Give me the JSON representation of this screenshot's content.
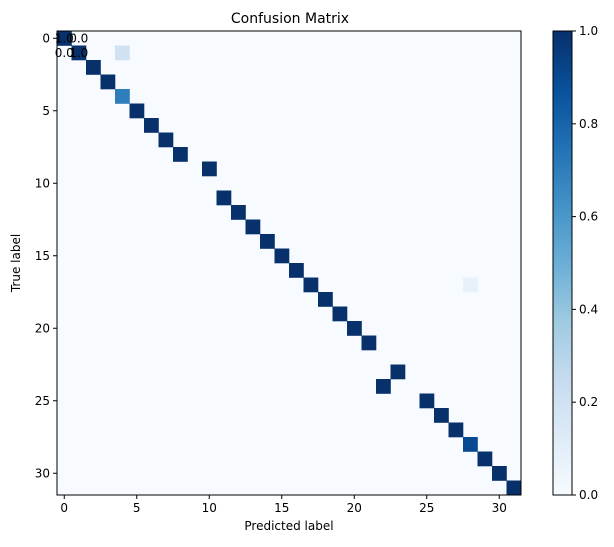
{
  "chart_data": {
    "type": "heatmap",
    "title": "Confusion Matrix",
    "xlabel": "Predicted label",
    "ylabel": "True label",
    "n_classes": 32,
    "xlim": [
      -0.5,
      31.5
    ],
    "ylim": [
      31.5,
      -0.5
    ],
    "x_ticks": [
      0,
      5,
      10,
      15,
      20,
      25,
      30
    ],
    "y_ticks": [
      0,
      5,
      10,
      15,
      20,
      25,
      30
    ],
    "default_value": 0.0,
    "cells": [
      {
        "row": 0,
        "col": 0,
        "value": 1.0
      },
      {
        "row": 1,
        "col": 1,
        "value": 1.0
      },
      {
        "row": 1,
        "col": 4,
        "value": 0.2
      },
      {
        "row": 2,
        "col": 2,
        "value": 1.0
      },
      {
        "row": 3,
        "col": 3,
        "value": 1.0
      },
      {
        "row": 4,
        "col": 4,
        "value": 0.7
      },
      {
        "row": 5,
        "col": 5,
        "value": 1.0
      },
      {
        "row": 6,
        "col": 6,
        "value": 1.0
      },
      {
        "row": 7,
        "col": 7,
        "value": 1.0
      },
      {
        "row": 8,
        "col": 8,
        "value": 1.0
      },
      {
        "row": 9,
        "col": 10,
        "value": 1.0
      },
      {
        "row": 11,
        "col": 11,
        "value": 1.0
      },
      {
        "row": 12,
        "col": 12,
        "value": 1.0
      },
      {
        "row": 13,
        "col": 13,
        "value": 1.0
      },
      {
        "row": 14,
        "col": 14,
        "value": 1.0
      },
      {
        "row": 15,
        "col": 15,
        "value": 1.0
      },
      {
        "row": 16,
        "col": 16,
        "value": 1.0
      },
      {
        "row": 17,
        "col": 17,
        "value": 1.0
      },
      {
        "row": 17,
        "col": 28,
        "value": 0.08
      },
      {
        "row": 18,
        "col": 18,
        "value": 1.0
      },
      {
        "row": 19,
        "col": 19,
        "value": 1.0
      },
      {
        "row": 20,
        "col": 20,
        "value": 1.0
      },
      {
        "row": 21,
        "col": 21,
        "value": 1.0
      },
      {
        "row": 23,
        "col": 23,
        "value": 1.0
      },
      {
        "row": 24,
        "col": 22,
        "value": 1.0
      },
      {
        "row": 25,
        "col": 25,
        "value": 1.0
      },
      {
        "row": 26,
        "col": 26,
        "value": 1.0
      },
      {
        "row": 27,
        "col": 27,
        "value": 1.0
      },
      {
        "row": 28,
        "col": 28,
        "value": 0.9
      },
      {
        "row": 29,
        "col": 29,
        "value": 1.0
      },
      {
        "row": 30,
        "col": 30,
        "value": 1.0
      },
      {
        "row": 31,
        "col": 31,
        "value": 1.0
      }
    ],
    "annotations": [
      {
        "row": 0,
        "col": 0,
        "text": "1.0"
      },
      {
        "row": 0,
        "col": 1,
        "text": "0.0"
      },
      {
        "row": 1,
        "col": 0,
        "text": "0.0"
      },
      {
        "row": 1,
        "col": 1,
        "text": "1.0"
      }
    ],
    "colorbar": {
      "colormap": "Blues",
      "range": [
        0.0,
        1.0
      ],
      "ticks": [
        0.0,
        0.2,
        0.4,
        0.6,
        0.8,
        1.0
      ],
      "tick_labels": [
        "0.0",
        "0.2",
        "0.4",
        "0.6",
        "0.8",
        "1.0"
      ],
      "placement": "right"
    }
  }
}
